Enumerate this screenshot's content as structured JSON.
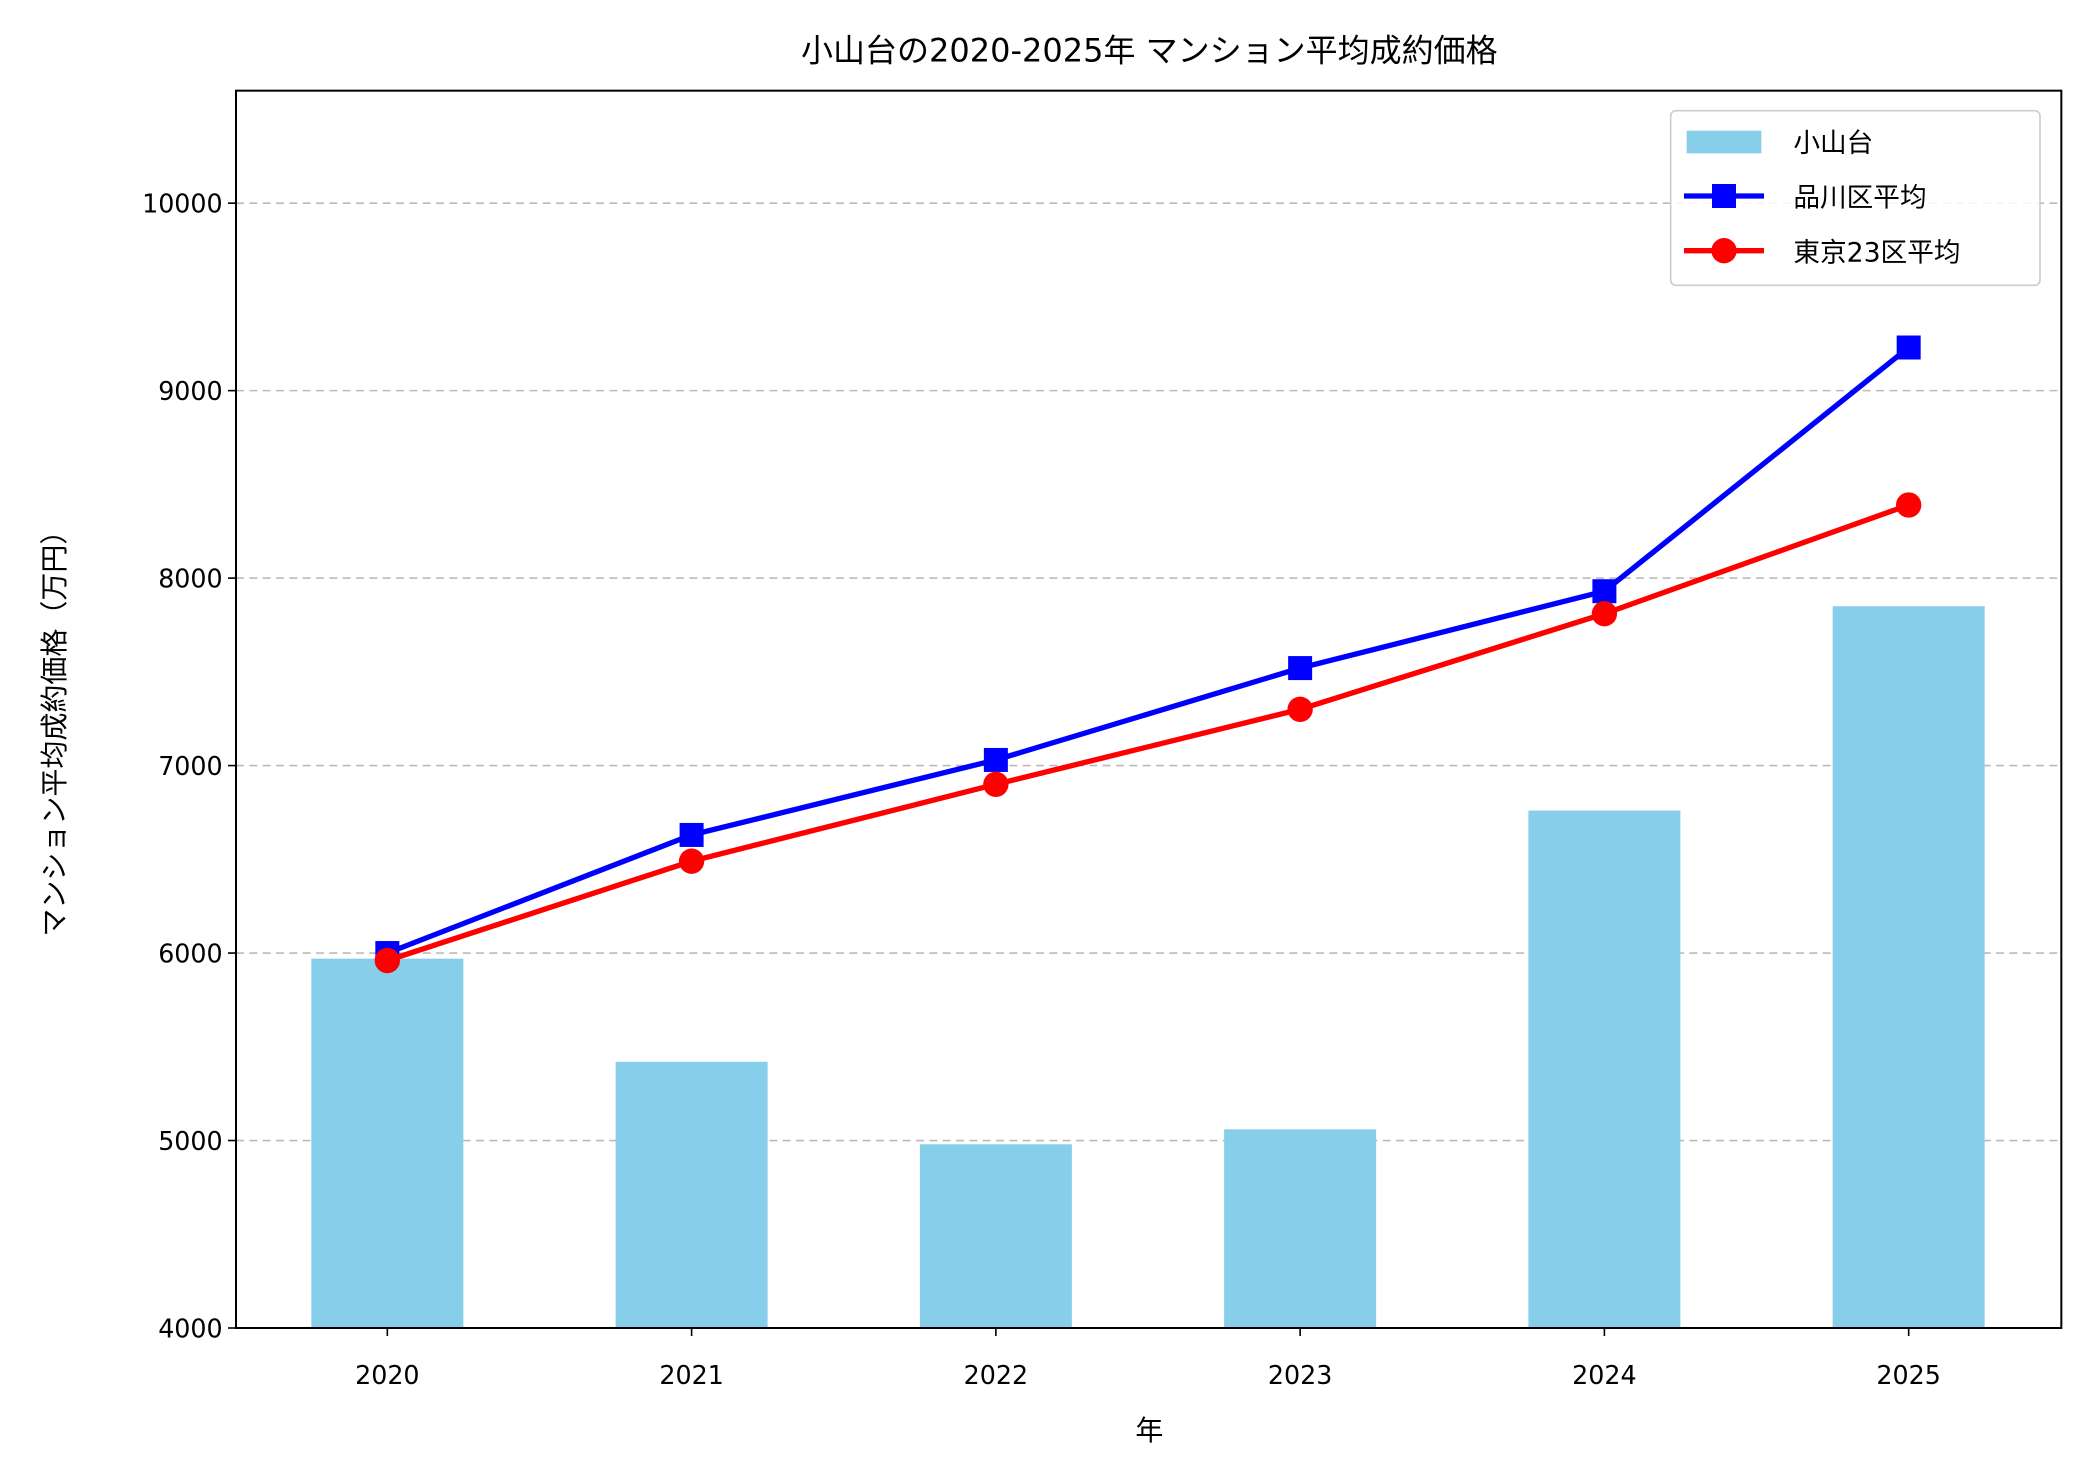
{
  "chart_data": {
    "type": "bar+line",
    "title": "小山台の2020-2025年 マンション平均成約価格",
    "xlabel": "年",
    "ylabel": "マンション平均成約価格（万円）",
    "categories": [
      "2020",
      "2021",
      "2022",
      "2023",
      "2024",
      "2025"
    ],
    "ylim": [
      4000,
      10600
    ],
    "yticks": [
      4000,
      5000,
      6000,
      7000,
      8000,
      9000,
      10000
    ],
    "grid": "y-dashed",
    "legend_position": "top-right",
    "series": [
      {
        "name": "小山台",
        "kind": "bar",
        "color": "#87CEEB",
        "values": [
          5970,
          5420,
          4980,
          5060,
          6760,
          7850
        ]
      },
      {
        "name": "品川区平均",
        "kind": "line",
        "marker": "square",
        "color": "#0000FF",
        "values": [
          6000,
          6630,
          7030,
          7520,
          7930,
          9230
        ]
      },
      {
        "name": "東京23区平均",
        "kind": "line",
        "marker": "circle",
        "color": "#FF0000",
        "values": [
          5960,
          6490,
          6900,
          7300,
          7810,
          8390
        ]
      }
    ]
  }
}
